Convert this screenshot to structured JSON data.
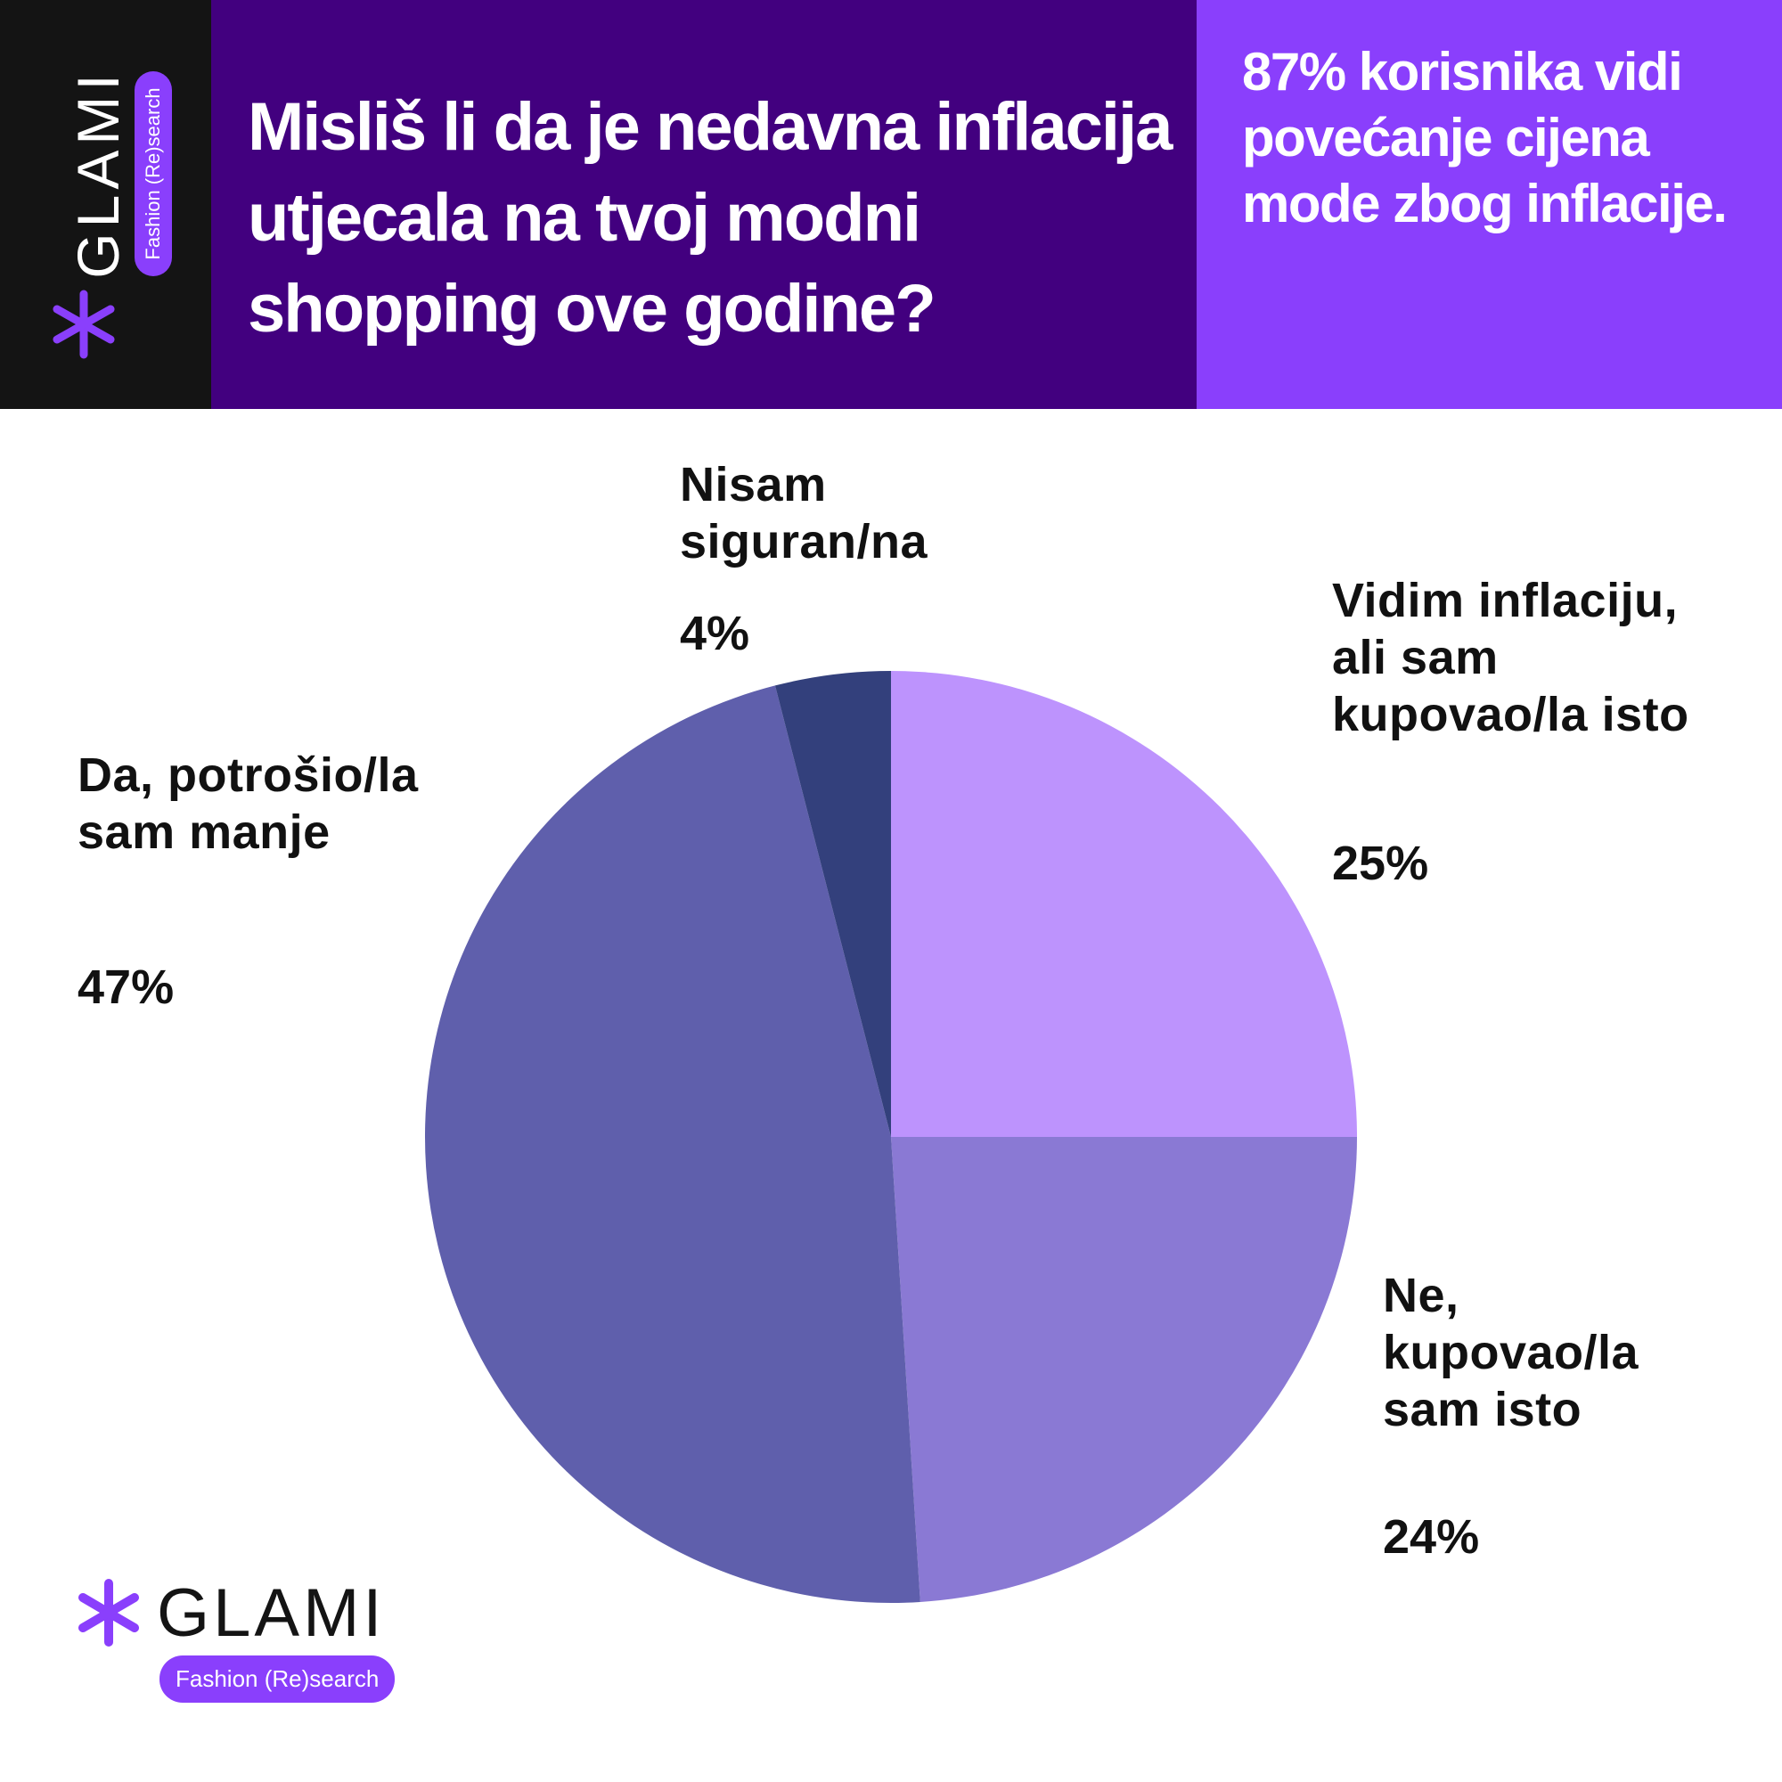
{
  "chart_data": {
    "type": "pie",
    "title": "Misliš li da je nedavna inflacija utjecala na tvoj modni shopping ove godine?",
    "annotation": "87% korisnika vidi povećanje cijena mode zbog inflacije.",
    "categories": [
      "Vidim inflaciju, ali sam kupovao/la isto",
      "Ne, kupovao/la sam isto",
      "Da, potrošio/la sam manje",
      "Nisam siguran/na"
    ],
    "values": [
      25,
      24,
      47,
      4
    ],
    "value_labels": [
      "25%",
      "24%",
      "47%",
      "4%"
    ],
    "colors": [
      "#bd93fd",
      "#8a79d4",
      "#5f5fac",
      "#33407c"
    ]
  },
  "brand": {
    "name": "GLAMI",
    "tagline": "Fashion (Re)search"
  }
}
